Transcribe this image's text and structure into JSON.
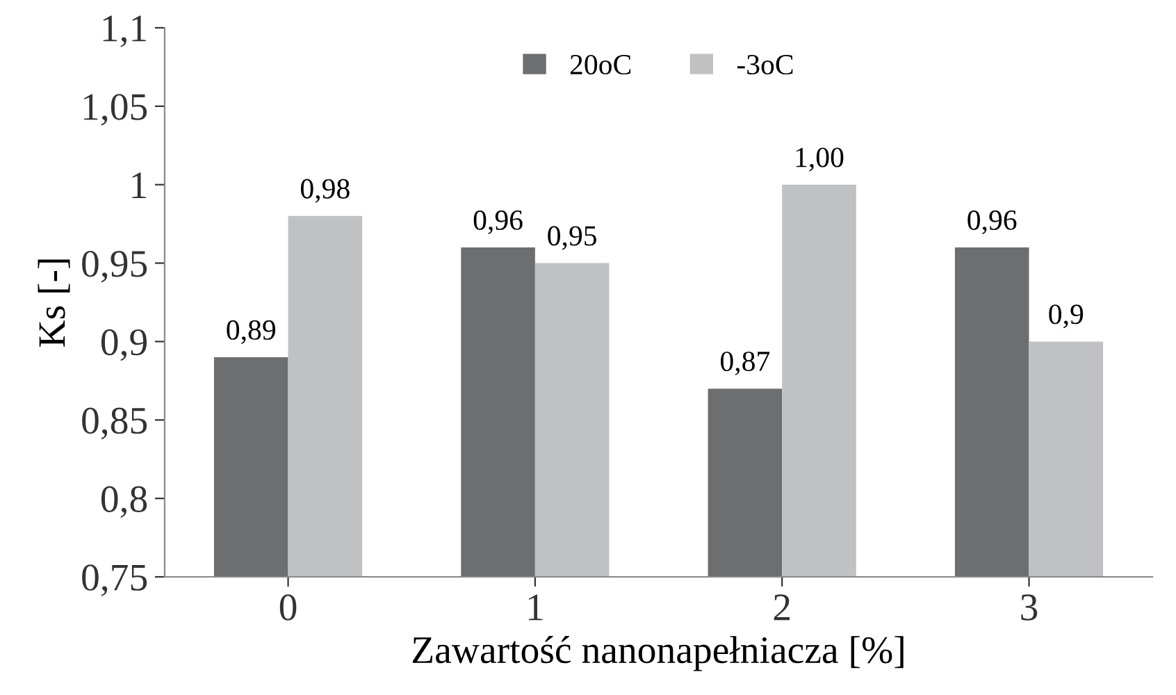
{
  "chart_data": {
    "type": "bar",
    "xlabel": "Zawartość nanonapełniacza [%]",
    "ylabel": "Ks [-]",
    "categories": [
      "0",
      "1",
      "2",
      "3"
    ],
    "series": [
      {
        "name": "20oC",
        "color": "#6d6e70",
        "values": [
          0.89,
          0.96,
          0.87,
          0.96
        ],
        "value_labels": [
          "0,89",
          "0,96",
          "0,87",
          "0,96"
        ]
      },
      {
        "name": "-3oC",
        "color": "#c0c1c3",
        "values": [
          0.98,
          0.95,
          1.0,
          0.9
        ],
        "value_labels": [
          "0,98",
          "0,95",
          "1,00",
          "0,9"
        ]
      }
    ],
    "ylim": [
      0.75,
      1.1
    ],
    "yticks": [
      {
        "value": 0.75,
        "label": "0,75"
      },
      {
        "value": 0.8,
        "label": "0,8"
      },
      {
        "value": 0.85,
        "label": "0,85"
      },
      {
        "value": 0.9,
        "label": "0,9"
      },
      {
        "value": 0.95,
        "label": "0,95"
      },
      {
        "value": 1,
        "label": "1"
      },
      {
        "value": 1.05,
        "label": "1,05"
      },
      {
        "value": 1.1,
        "label": "1,1"
      }
    ],
    "grid": false,
    "legend": "top"
  }
}
